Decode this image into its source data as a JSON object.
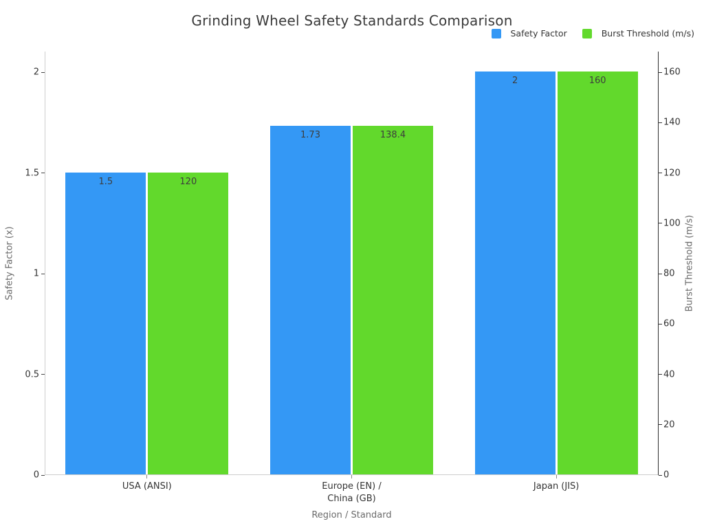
{
  "title": "Grinding Wheel Safety Standards Comparison",
  "chart_data": {
    "type": "bar",
    "title": "Grinding Wheel Safety Standards Comparison",
    "categories": [
      "USA (ANSI)",
      "Europe (EN) /\nChina (GB)",
      "Japan (JIS)"
    ],
    "series": [
      {
        "name": "Safety Factor",
        "axis": "left",
        "color": "#3498f5",
        "values": [
          1.5,
          1.73,
          2
        ],
        "value_labels": [
          "1.5",
          "1.73",
          "2"
        ]
      },
      {
        "name": "Burst Threshold (m/s)",
        "axis": "right",
        "color": "#62d92c",
        "values": [
          120,
          138.4,
          160
        ],
        "value_labels": [
          "120",
          "138.4",
          "160"
        ]
      }
    ],
    "xlabel": "Region / Standard",
    "ylabel": "Safety Factor (x)",
    "y2label": "Burst Threshold (m/s)",
    "ylim": [
      0,
      2
    ],
    "y2lim": [
      0,
      160
    ],
    "y_ticks": [
      0,
      0.5,
      1,
      1.5,
      2
    ],
    "y_tick_labels": [
      "0",
      "0.5",
      "1",
      "1.5",
      "2"
    ],
    "y2_ticks": [
      0,
      20,
      40,
      60,
      80,
      100,
      120,
      140,
      160
    ],
    "y2_tick_labels": [
      "0",
      "20",
      "40",
      "60",
      "80",
      "100",
      "120",
      "140",
      "160"
    ],
    "grid": false,
    "background": "#ffffff",
    "legend_position": "top-right"
  }
}
